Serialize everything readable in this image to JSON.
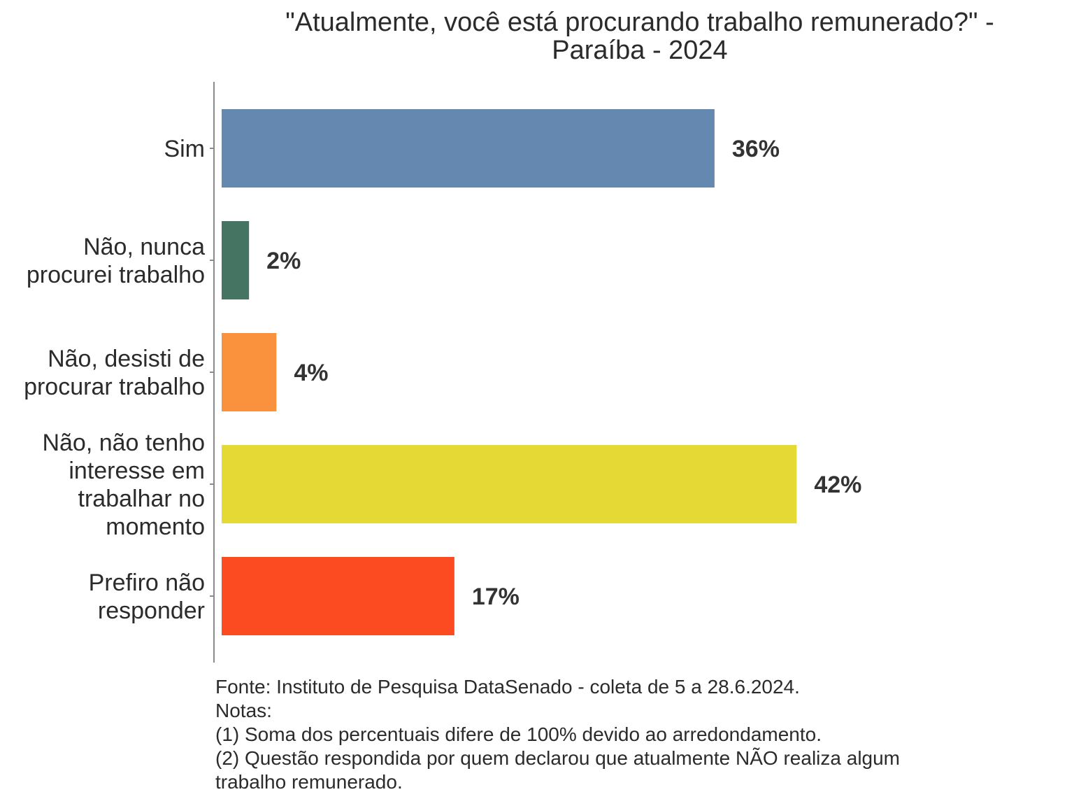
{
  "chart_data": {
    "type": "bar",
    "orientation": "horizontal",
    "title": "\"Atualmente, você está procurando trabalho remunerado?\" - Paraíba - 2024",
    "title_lines": [
      "\"Atualmente, você está procurando trabalho remunerado?\" -",
      "Paraíba - 2024"
    ],
    "categories": [
      "Sim",
      "Não, nunca procurei trabalho",
      "Não, desisti de procurar trabalho",
      "Não, não tenho interesse em trabalhar no momento",
      "Prefiro não responder"
    ],
    "category_lines": [
      [
        "Sim"
      ],
      [
        "Não, nunca",
        "procurei trabalho"
      ],
      [
        "Não, desisti de",
        "procurar trabalho"
      ],
      [
        "Não, não tenho",
        "interesse em",
        "trabalhar no",
        "momento"
      ],
      [
        "Prefiro não",
        "responder"
      ]
    ],
    "values": [
      36,
      2,
      4,
      42,
      17
    ],
    "data_labels": [
      "36%",
      "2%",
      "4%",
      "42%",
      "17%"
    ],
    "colors": [
      "#6488b0",
      "#467462",
      "#fa913d",
      "#e4d935",
      "#fd4b21"
    ],
    "xlim": [
      0,
      60
    ],
    "grid": false,
    "legend": "none"
  },
  "footnote": {
    "source": "Fonte: Instituto de Pesquisa DataSenado - coleta de 5 a 28.6.2024.",
    "notes_label": "Notas:",
    "note1": "(1) Soma dos percentuais difere de 100% devido ao arredondamento.",
    "note2_line1": "(2) Questão respondida por quem declarou que atualmente NÃO realiza algum",
    "note2_line2": "trabalho remunerado."
  }
}
